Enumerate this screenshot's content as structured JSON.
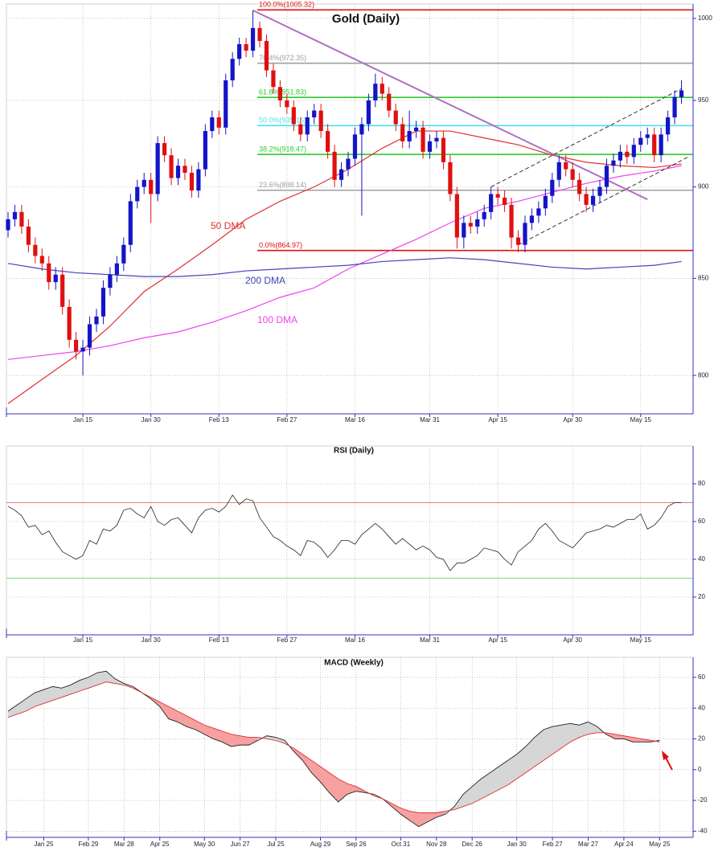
{
  "chart_data": [
    {
      "type": "candlestick",
      "title": "Gold (Daily)",
      "log_scale": true,
      "grid": true,
      "up_color": "#1414c8",
      "down_color": "#e01010",
      "categories": [
        null,
        null,
        null,
        null,
        null,
        null,
        null,
        null,
        null,
        null,
        null,
        "Jan 15",
        null,
        null,
        null,
        null,
        null,
        null,
        null,
        null,
        null,
        "Jan 30",
        null,
        null,
        null,
        null,
        null,
        null,
        null,
        null,
        null,
        "Feb 13",
        null,
        null,
        null,
        null,
        null,
        null,
        null,
        null,
        null,
        "Feb 27",
        null,
        null,
        null,
        null,
        null,
        null,
        null,
        null,
        null,
        "Mar 16",
        null,
        null,
        null,
        null,
        null,
        null,
        null,
        null,
        null,
        null,
        "Mar 31",
        null,
        null,
        null,
        null,
        null,
        null,
        null,
        null,
        null,
        "Apr 15",
        null,
        null,
        null,
        null,
        null,
        null,
        null,
        null,
        null,
        null,
        "Apr 30",
        null,
        null,
        null,
        null,
        null,
        null,
        null,
        null,
        null,
        "May 15",
        null,
        null,
        null,
        null,
        null,
        null
      ],
      "open": [
        876,
        882,
        886,
        878,
        868,
        862,
        858,
        848,
        852,
        835,
        818,
        812,
        814,
        826,
        830,
        845,
        852,
        858,
        868,
        892,
        900,
        904,
        896,
        925,
        918,
        905,
        912,
        908,
        898,
        910,
        932,
        940,
        934,
        962,
        975,
        984,
        980,
        994,
        986,
        968,
        958,
        950,
        946,
        936,
        930,
        940,
        944,
        932,
        920,
        904,
        910,
        916,
        930,
        936,
        950,
        960,
        954,
        944,
        936,
        926,
        932,
        934,
        920,
        926,
        928,
        914,
        896,
        872,
        880,
        878,
        882,
        886,
        896,
        894,
        890,
        872,
        868,
        880,
        884,
        888,
        895,
        904,
        914,
        910,
        904,
        896,
        890,
        895,
        900,
        912,
        915,
        920,
        917,
        924,
        928,
        930,
        918,
        930,
        940,
        952
      ],
      "high": [
        886,
        890,
        890,
        882,
        872,
        866,
        862,
        856,
        856,
        839,
        822,
        818,
        830,
        834,
        849,
        856,
        862,
        872,
        896,
        904,
        908,
        908,
        929,
        929,
        922,
        916,
        916,
        912,
        914,
        936,
        944,
        944,
        966,
        979,
        988,
        988,
        1005,
        998,
        990,
        972,
        962,
        954,
        950,
        940,
        944,
        948,
        948,
        936,
        924,
        914,
        920,
        934,
        940,
        954,
        966,
        964,
        958,
        948,
        940,
        944,
        938,
        938,
        930,
        932,
        932,
        918,
        900,
        884,
        884,
        886,
        890,
        900,
        900,
        898,
        894,
        876,
        884,
        888,
        892,
        899,
        908,
        918,
        918,
        914,
        908,
        900,
        899,
        904,
        916,
        919,
        924,
        924,
        928,
        932,
        934,
        934,
        934,
        944,
        956,
        962
      ],
      "low": [
        872,
        878,
        874,
        864,
        858,
        854,
        844,
        844,
        831,
        814,
        808,
        800,
        810,
        822,
        826,
        841,
        848,
        854,
        864,
        888,
        896,
        880,
        892,
        914,
        901,
        901,
        904,
        894,
        894,
        906,
        928,
        930,
        930,
        958,
        971,
        976,
        976,
        982,
        964,
        954,
        946,
        942,
        932,
        926,
        926,
        936,
        928,
        916,
        900,
        900,
        906,
        912,
        884,
        932,
        946,
        950,
        940,
        932,
        922,
        922,
        928,
        916,
        916,
        922,
        910,
        892,
        866,
        866,
        874,
        874,
        878,
        882,
        890,
        886,
        866,
        864,
        864,
        876,
        880,
        884,
        891,
        900,
        906,
        900,
        892,
        886,
        886,
        891,
        896,
        908,
        911,
        913,
        913,
        920,
        924,
        914,
        914,
        926,
        936,
        948
      ],
      "close": [
        882,
        886,
        878,
        868,
        862,
        858,
        848,
        852,
        835,
        818,
        812,
        814,
        826,
        830,
        845,
        852,
        858,
        868,
        892,
        900,
        904,
        896,
        925,
        918,
        905,
        912,
        908,
        898,
        910,
        932,
        940,
        934,
        962,
        975,
        984,
        980,
        994,
        986,
        968,
        958,
        950,
        946,
        936,
        930,
        940,
        944,
        932,
        920,
        904,
        910,
        916,
        930,
        936,
        950,
        960,
        954,
        944,
        936,
        926,
        932,
        934,
        920,
        926,
        928,
        914,
        896,
        872,
        880,
        878,
        882,
        886,
        896,
        894,
        890,
        872,
        868,
        880,
        884,
        888,
        895,
        904,
        914,
        910,
        904,
        896,
        890,
        895,
        900,
        912,
        915,
        920,
        917,
        924,
        928,
        930,
        918,
        930,
        940,
        952,
        956
      ],
      "series": [
        {
          "name": "50 DMA",
          "color": "#e03030",
          "x": [
            0,
            5,
            10,
            15,
            20,
            25,
            30,
            35,
            40,
            45,
            50,
            55,
            60,
            65,
            70,
            75,
            80,
            85,
            90,
            95,
            99
          ],
          "values": [
            786,
            798,
            810,
            825,
            843,
            855,
            868,
            882,
            892,
            900,
            910,
            922,
            932,
            932,
            928,
            924,
            918,
            914,
            912,
            911,
            913
          ]
        },
        {
          "name": "100 DMA",
          "color": "#ee44ee",
          "x": [
            0,
            5,
            10,
            15,
            20,
            25,
            30,
            35,
            40,
            45,
            50,
            55,
            60,
            65,
            70,
            75,
            80,
            85,
            90,
            95,
            99
          ],
          "values": [
            808,
            810,
            812,
            815,
            819,
            822,
            827,
            833,
            840,
            845,
            855,
            863,
            871,
            880,
            888,
            892,
            897,
            902,
            906,
            909,
            912
          ]
        },
        {
          "name": "200 DMA",
          "color": "#4444bb",
          "x": [
            0,
            5,
            10,
            15,
            20,
            25,
            30,
            35,
            40,
            45,
            50,
            55,
            60,
            65,
            70,
            75,
            80,
            85,
            90,
            95,
            99
          ],
          "values": [
            858,
            855,
            853,
            852,
            851,
            851,
            852,
            854,
            855,
            856,
            857,
            859,
            860,
            861,
            860,
            858,
            856,
            855,
            856,
            857,
            859
          ]
        }
      ],
      "levels": [
        {
          "label": "100.0%(1005.32)",
          "value": 1005.32,
          "color": "#e01010"
        },
        {
          "label": "76.4%(972.35)",
          "value": 972.35,
          "color": "#a0a0a0"
        },
        {
          "label": "61.8%(951.83)",
          "value": 951.83,
          "color": "#2ecc2e"
        },
        {
          "label": "50.0%(935.15)",
          "value": 935.15,
          "color": "#4fe0ee"
        },
        {
          "label": "38.2%(918.47)",
          "value": 918.47,
          "color": "#2ecc2e"
        },
        {
          "label": "23.6%(898.14)",
          "value": 898.14,
          "color": "#a0a0a0"
        },
        {
          "label": "0.0%(864.97)",
          "value": 864.97,
          "color": "#e01010"
        }
      ],
      "trendlines": [
        {
          "x": [
            36,
            94
          ],
          "y": [
            1005,
            893
          ],
          "color": "#b070c0",
          "dashed": false
        },
        {
          "x": [
            71,
            99
          ],
          "y": [
            900,
            957
          ],
          "color": "#333333",
          "dashed": true
        },
        {
          "x": [
            75,
            100
          ],
          "y": [
            868,
            917
          ],
          "color": "#333333",
          "dashed": true
        }
      ],
      "ylim": [
        781,
        1009
      ],
      "yticks": [
        800,
        850,
        900,
        950,
        1000
      ]
    },
    {
      "type": "line",
      "title": "RSI (Daily)",
      "grid": true,
      "color": "#222222",
      "categories": [
        null,
        null,
        null,
        null,
        null,
        null,
        null,
        null,
        null,
        null,
        null,
        "Jan 15",
        null,
        null,
        null,
        null,
        null,
        null,
        null,
        null,
        null,
        "Jan 30",
        null,
        null,
        null,
        null,
        null,
        null,
        null,
        null,
        null,
        "Feb 13",
        null,
        null,
        null,
        null,
        null,
        null,
        null,
        null,
        null,
        "Feb 27",
        null,
        null,
        null,
        null,
        null,
        null,
        null,
        null,
        null,
        "Mar 16",
        null,
        null,
        null,
        null,
        null,
        null,
        null,
        null,
        null,
        null,
        "Mar 31",
        null,
        null,
        null,
        null,
        null,
        null,
        null,
        null,
        null,
        "Apr 15",
        null,
        null,
        null,
        null,
        null,
        null,
        null,
        null,
        null,
        null,
        "Apr 30",
        null,
        null,
        null,
        null,
        null,
        null,
        null,
        null,
        null,
        "May 15",
        null,
        null,
        null,
        null,
        null,
        null
      ],
      "values": [
        68,
        66,
        63,
        57,
        58,
        53,
        55,
        49,
        44,
        42,
        40,
        42,
        50,
        48,
        56,
        55,
        58,
        66,
        67,
        64,
        62,
        68,
        60,
        58,
        61,
        62,
        58,
        54,
        62,
        66,
        67,
        65,
        68,
        74,
        69,
        72,
        71,
        62,
        57,
        52,
        50,
        47,
        45,
        42,
        50,
        49,
        46,
        41,
        45,
        50,
        50,
        48,
        53,
        56,
        59,
        56,
        52,
        48,
        51,
        48,
        45,
        47,
        45,
        41,
        40,
        34,
        38,
        38,
        40,
        42,
        46,
        45,
        44,
        40,
        37,
        44,
        47,
        50,
        56,
        59,
        55,
        50,
        48,
        46,
        50,
        54,
        55,
        56,
        58,
        57,
        59,
        61,
        61,
        64,
        56,
        58,
        62,
        68,
        70,
        70
      ],
      "hlines": [
        {
          "value": 70,
          "color": "#e05050"
        },
        {
          "value": 30,
          "color": "#50cc50"
        }
      ],
      "ylim": [
        0,
        100
      ],
      "yticks": [
        20,
        40,
        60,
        80
      ]
    },
    {
      "type": "macd",
      "title": "MACD (Weekly)",
      "grid": true,
      "fill_above": "#d6d6d6",
      "fill_below": "#f6a0a0",
      "categories": [
        null,
        null,
        null,
        null,
        "Jan 25",
        null,
        null,
        null,
        null,
        "Feb 29",
        null,
        null,
        null,
        "Mar 28",
        null,
        null,
        null,
        "Apr 25",
        null,
        null,
        null,
        null,
        "May 30",
        null,
        null,
        null,
        "Jun 27",
        null,
        null,
        null,
        "Jul 25",
        null,
        null,
        null,
        null,
        "Aug 29",
        null,
        null,
        null,
        "Sep 26",
        null,
        null,
        null,
        null,
        "Oct 31",
        null,
        null,
        null,
        "Nov 28",
        null,
        null,
        null,
        "Dec 26",
        null,
        null,
        null,
        null,
        "Jan 30",
        null,
        null,
        null,
        "Feb 27",
        null,
        null,
        null,
        "Mar 27",
        null,
        null,
        null,
        "Apr 24",
        null,
        null,
        null,
        "May 25"
      ],
      "series": [
        {
          "color": "#222222",
          "values": [
            38,
            42,
            46,
            50,
            52,
            54,
            53,
            55,
            58,
            60,
            63,
            64,
            59,
            56,
            54,
            50,
            46,
            41,
            33,
            31,
            28,
            26,
            23,
            20,
            18,
            15,
            16,
            16,
            19,
            22,
            21,
            19,
            12,
            6,
            -2,
            -8,
            -15,
            -21,
            -16,
            -14,
            -15,
            -16,
            -19,
            -24,
            -29,
            -33,
            -37,
            -34,
            -31,
            -29,
            -24,
            -16,
            -11,
            -6,
            -2,
            2,
            6,
            10,
            15,
            21,
            26,
            28,
            29,
            30,
            29,
            31,
            28,
            23,
            20,
            20,
            18,
            18,
            18,
            19
          ]
        },
        {
          "color": "#e03030",
          "values": [
            34,
            36,
            38,
            41,
            43,
            45,
            47,
            49,
            51,
            53,
            55,
            57,
            56,
            55,
            53,
            50,
            47,
            44,
            41,
            38,
            35,
            32,
            29,
            27,
            25,
            23,
            22,
            21,
            21,
            20,
            19,
            17,
            14,
            10,
            6,
            2,
            -2,
            -6,
            -9,
            -11,
            -14,
            -17,
            -19,
            -22,
            -25,
            -27,
            -28,
            -28,
            -28,
            -27,
            -26,
            -24,
            -22,
            -19,
            -16,
            -13,
            -10,
            -6,
            -2,
            2,
            6,
            10,
            14,
            18,
            21,
            23,
            24,
            24,
            23,
            22,
            21,
            20,
            19,
            18
          ]
        }
      ],
      "ylim": [
        -44,
        73
      ],
      "yticks": [
        -40,
        -20,
        0,
        20,
        40,
        60
      ]
    }
  ]
}
